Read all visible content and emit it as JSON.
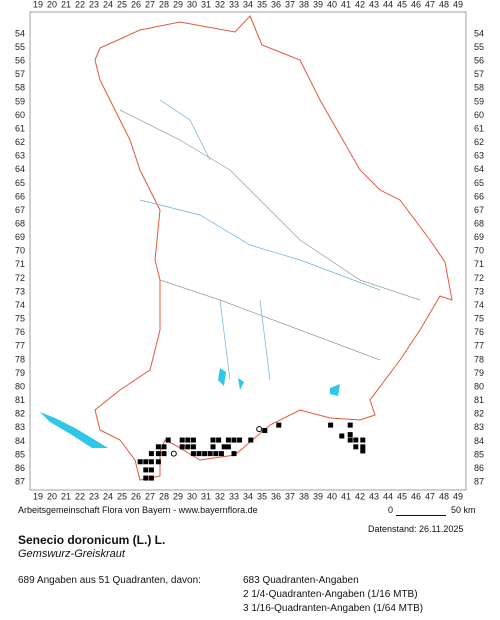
{
  "map": {
    "col_labels": [
      19,
      20,
      21,
      22,
      23,
      24,
      25,
      26,
      27,
      28,
      29,
      30,
      31,
      32,
      33,
      34,
      35,
      36,
      37,
      38,
      39,
      40,
      41,
      42,
      43,
      44,
      45,
      46,
      47,
      48,
      49
    ],
    "row_labels": [
      54,
      55,
      56,
      57,
      58,
      59,
      60,
      61,
      62,
      63,
      64,
      65,
      66,
      67,
      68,
      69,
      70,
      71,
      72,
      73,
      74,
      75,
      76,
      77,
      78,
      79,
      80,
      81,
      82,
      83,
      84,
      85,
      86,
      87
    ],
    "records": [
      [
        26.3,
        85.5
      ],
      [
        26.7,
        85.5
      ],
      [
        27.1,
        85.5
      ],
      [
        26.7,
        86.1
      ],
      [
        27.1,
        86.1
      ],
      [
        26.7,
        86.7
      ],
      [
        27.1,
        86.7
      ],
      [
        27.1,
        84.9
      ],
      [
        27.6,
        84.9
      ],
      [
        27.6,
        84.4
      ],
      [
        27.6,
        85.5
      ],
      [
        28,
        84.4
      ],
      [
        28,
        84.9
      ],
      [
        28.3,
        83.9
      ],
      [
        29.3,
        83.9
      ],
      [
        29.7,
        83.9
      ],
      [
        30.1,
        83.9
      ],
      [
        29.3,
        84.4
      ],
      [
        29.7,
        84.4
      ],
      [
        30.1,
        84.4
      ],
      [
        30.1,
        84.9
      ],
      [
        30.5,
        84.9
      ],
      [
        30.9,
        84.9
      ],
      [
        31.3,
        84.9
      ],
      [
        31.7,
        84.9
      ],
      [
        32.1,
        84.9
      ],
      [
        31.5,
        83.9
      ],
      [
        31.9,
        83.9
      ],
      [
        31.5,
        84.4
      ],
      [
        32.3,
        84.4
      ],
      [
        32.6,
        83.9
      ],
      [
        33,
        83.9
      ],
      [
        33.4,
        83.9
      ],
      [
        32.6,
        84.4
      ],
      [
        33,
        84.9
      ],
      [
        34.2,
        83.9
      ],
      [
        35.2,
        83.2
      ],
      [
        36.2,
        82.8
      ],
      [
        39.9,
        82.8
      ],
      [
        40.7,
        83.6
      ],
      [
        41.3,
        82.8
      ],
      [
        41.3,
        83.9
      ],
      [
        41.7,
        83.9
      ],
      [
        42.2,
        83.9
      ],
      [
        41.7,
        84.4
      ],
      [
        42.2,
        84.4
      ],
      [
        41.3,
        83.5
      ],
      [
        42.2,
        84.7
      ]
    ],
    "records_open": [
      [
        28.7,
        84.9
      ],
      [
        34.8,
        83.1
      ]
    ]
  },
  "footer": {
    "credit": "Arbeitsgemeinschaft Flora von Bayern - www.bayernflora.de",
    "scale_start": "0",
    "scale_end": "50 km",
    "date": "Datenstand: 26.11.2025"
  },
  "species": {
    "name": "Senecio doronicum (L.) L.",
    "common": "Gemswurz-Greiskraut"
  },
  "stats": {
    "summary": "689 Angaben aus 51 Quadranten, davon:",
    "lines": [
      "683 Quadranten-Angaben",
      "2 1/4-Quadranten-Angaben (1/16 MTB)",
      "3 1/16-Quadranten-Angaben (1/64 MTB)"
    ]
  }
}
